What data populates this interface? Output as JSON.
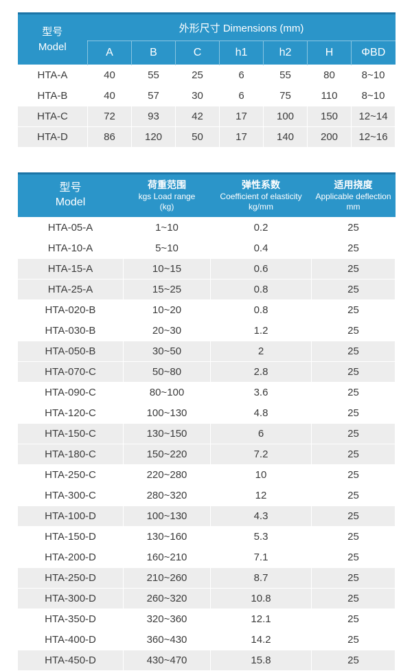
{
  "colors": {
    "header_blue": "#2b95c9",
    "header_top_border": "#1b74a6",
    "row_shade": "#ededed",
    "body_text": "#3a3a3a",
    "header_text": "#ffffff"
  },
  "dimensions_table": {
    "model_header_zh": "型号",
    "model_header_en": "Model",
    "group_header": "外形尺寸 Dimensions (mm)",
    "columns": [
      "A",
      "B",
      "C",
      "h1",
      "h2",
      "H",
      "ΦBD"
    ],
    "rows": [
      {
        "model": "HTA-A",
        "values": [
          "40",
          "55",
          "25",
          "6",
          "55",
          "80",
          "8~10"
        ],
        "shaded": false
      },
      {
        "model": "HTA-B",
        "values": [
          "40",
          "57",
          "30",
          "6",
          "75",
          "110",
          "8~10"
        ],
        "shaded": false
      },
      {
        "model": "HTA-C",
        "values": [
          "72",
          "93",
          "42",
          "17",
          "100",
          "150",
          "12~14"
        ],
        "shaded": true
      },
      {
        "model": "HTA-D",
        "values": [
          "86",
          "120",
          "50",
          "17",
          "140",
          "200",
          "12~16"
        ],
        "shaded": true
      }
    ]
  },
  "load_table": {
    "headers": {
      "model": {
        "zh": "型号",
        "en": "Model"
      },
      "load": {
        "zh": "荷重范围",
        "en1": "kgs Load range",
        "en2": "(kg)"
      },
      "coeff": {
        "zh": "弹性系数",
        "en1": "Coefficient of elasticity",
        "en2": "kg/mm"
      },
      "defl": {
        "zh": "适用挠度",
        "en1": "Applicable deflection",
        "en2": "mm"
      }
    },
    "rows": [
      {
        "model": "HTA-05-A",
        "load_range": "1~10",
        "coefficient": "0.2",
        "deflection": "25",
        "shaded": false
      },
      {
        "model": "HTA-10-A",
        "load_range": "5~10",
        "coefficient": "0.4",
        "deflection": "25",
        "shaded": false
      },
      {
        "model": "HTA-15-A",
        "load_range": "10~15",
        "coefficient": "0.6",
        "deflection": "25",
        "shaded": true
      },
      {
        "model": "HTA-25-A",
        "load_range": "15~25",
        "coefficient": "0.8",
        "deflection": "25",
        "shaded": true
      },
      {
        "model": "HTA-020-B",
        "load_range": "10~20",
        "coefficient": "0.8",
        "deflection": "25",
        "shaded": false
      },
      {
        "model": "HTA-030-B",
        "load_range": "20~30",
        "coefficient": "1.2",
        "deflection": "25",
        "shaded": false
      },
      {
        "model": "HTA-050-B",
        "load_range": "30~50",
        "coefficient": "2",
        "deflection": "25",
        "shaded": true
      },
      {
        "model": "HTA-070-C",
        "load_range": "50~80",
        "coefficient": "2.8",
        "deflection": "25",
        "shaded": true
      },
      {
        "model": "HTA-090-C",
        "load_range": "80~100",
        "coefficient": "3.6",
        "deflection": "25",
        "shaded": false
      },
      {
        "model": "HTA-120-C",
        "load_range": "100~130",
        "coefficient": "4.8",
        "deflection": "25",
        "shaded": false
      },
      {
        "model": "HTA-150-C",
        "load_range": "130~150",
        "coefficient": "6",
        "deflection": "25",
        "shaded": true
      },
      {
        "model": "HTA-180-C",
        "load_range": "150~220",
        "coefficient": "7.2",
        "deflection": "25",
        "shaded": true
      },
      {
        "model": "HTA-250-C",
        "load_range": "220~280",
        "coefficient": "10",
        "deflection": "25",
        "shaded": false
      },
      {
        "model": "HTA-300-C",
        "load_range": "280~320",
        "coefficient": "12",
        "deflection": "25",
        "shaded": false
      },
      {
        "model": "HTA-100-D",
        "load_range": "100~130",
        "coefficient": "4.3",
        "deflection": "25",
        "shaded": true
      },
      {
        "model": "HTA-150-D",
        "load_range": "130~160",
        "coefficient": "5.3",
        "deflection": "25",
        "shaded": false
      },
      {
        "model": "HTA-200-D",
        "load_range": "160~210",
        "coefficient": "7.1",
        "deflection": "25",
        "shaded": false
      },
      {
        "model": "HTA-250-D",
        "load_range": "210~260",
        "coefficient": "8.7",
        "deflection": "25",
        "shaded": true
      },
      {
        "model": "HTA-300-D",
        "load_range": "260~320",
        "coefficient": "10.8",
        "deflection": "25",
        "shaded": true
      },
      {
        "model": "HTA-350-D",
        "load_range": "320~360",
        "coefficient": "12.1",
        "deflection": "25",
        "shaded": false
      },
      {
        "model": "HTA-400-D",
        "load_range": "360~430",
        "coefficient": "14.2",
        "deflection": "25",
        "shaded": false
      },
      {
        "model": "HTA-450-D",
        "load_range": "430~470",
        "coefficient": "15.8",
        "deflection": "25",
        "shaded": true
      }
    ]
  }
}
